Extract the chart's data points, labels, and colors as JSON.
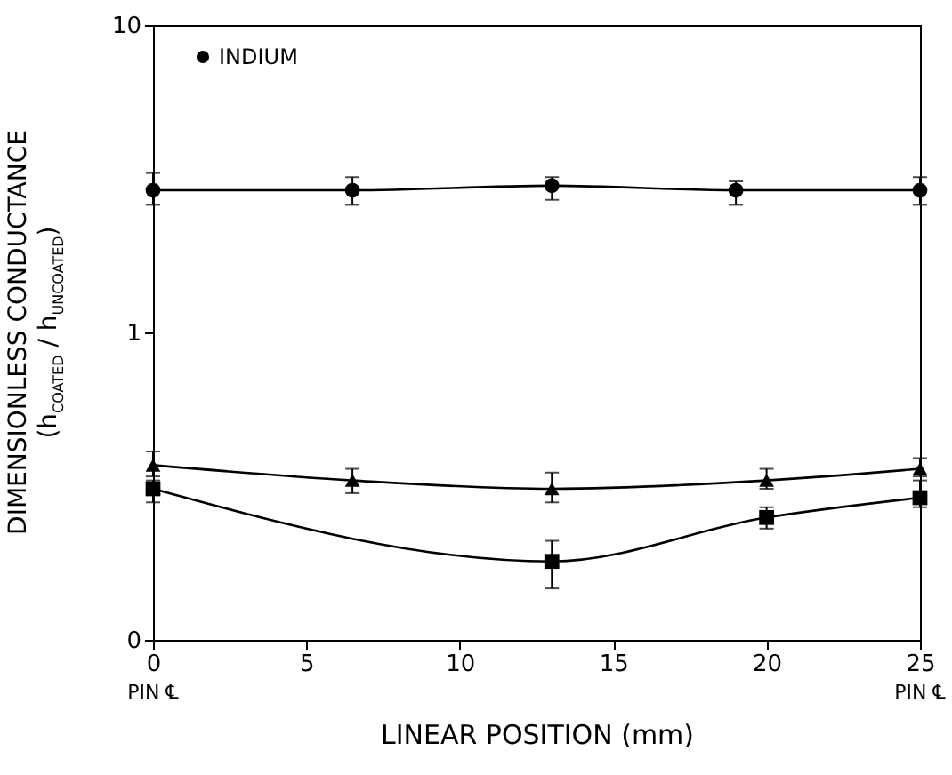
{
  "chart_data": {
    "type": "line",
    "ylabel": "DIMENSIONLESS CONDUCTANCE\n(h$_{COATED}$ / h$_{UNCOATED}$)",
    "xlabel": "LINEAR POSITION (mm)",
    "annotations": [
      "PIN ℄",
      "PIN ℄"
    ],
    "log": "y",
    "xlim": [
      0,
      25
    ],
    "xticks": [
      0,
      5,
      10,
      15,
      20,
      25
    ],
    "ylim": [
      0.1,
      10
    ],
    "yticks": [
      {
        "value": 0.1,
        "label": "0"
      },
      1,
      10
    ],
    "legend": "top left",
    "line_style": "solid",
    "series": [
      {
        "name": "INDIUM",
        "color": "#000000",
        "marker": "circle",
        "x": [
          0,
          6.5,
          13,
          19,
          25
        ],
        "values": [
          2.9,
          2.9,
          3.0,
          2.9,
          2.9
        ],
        "errors": [
          [
            2.6,
            3.3
          ],
          [
            2.6,
            3.2
          ],
          [
            2.7,
            3.2
          ],
          [
            2.6,
            3.1
          ],
          [
            2.6,
            3.2
          ]
        ]
      },
      {
        "color": "#000000",
        "marker": "triangle",
        "x": [
          0,
          6.5,
          13,
          20,
          25
        ],
        "values": [
          0.37,
          0.33,
          0.31,
          0.33,
          0.36
        ],
        "errors": [
          [
            0.34,
            0.41
          ],
          [
            0.3,
            0.36
          ],
          [
            0.28,
            0.35
          ],
          [
            0.31,
            0.36
          ],
          [
            0.34,
            0.39
          ]
        ]
      },
      {
        "color": "#000000",
        "marker": "square",
        "x": [
          0,
          13,
          20,
          25
        ],
        "values": [
          0.31,
          0.18,
          0.25,
          0.29
        ],
        "errors": [
          [
            0.28,
            0.33
          ],
          [
            0.147,
            0.21
          ],
          [
            0.23,
            0.27
          ],
          [
            0.27,
            0.33
          ]
        ]
      }
    ]
  }
}
